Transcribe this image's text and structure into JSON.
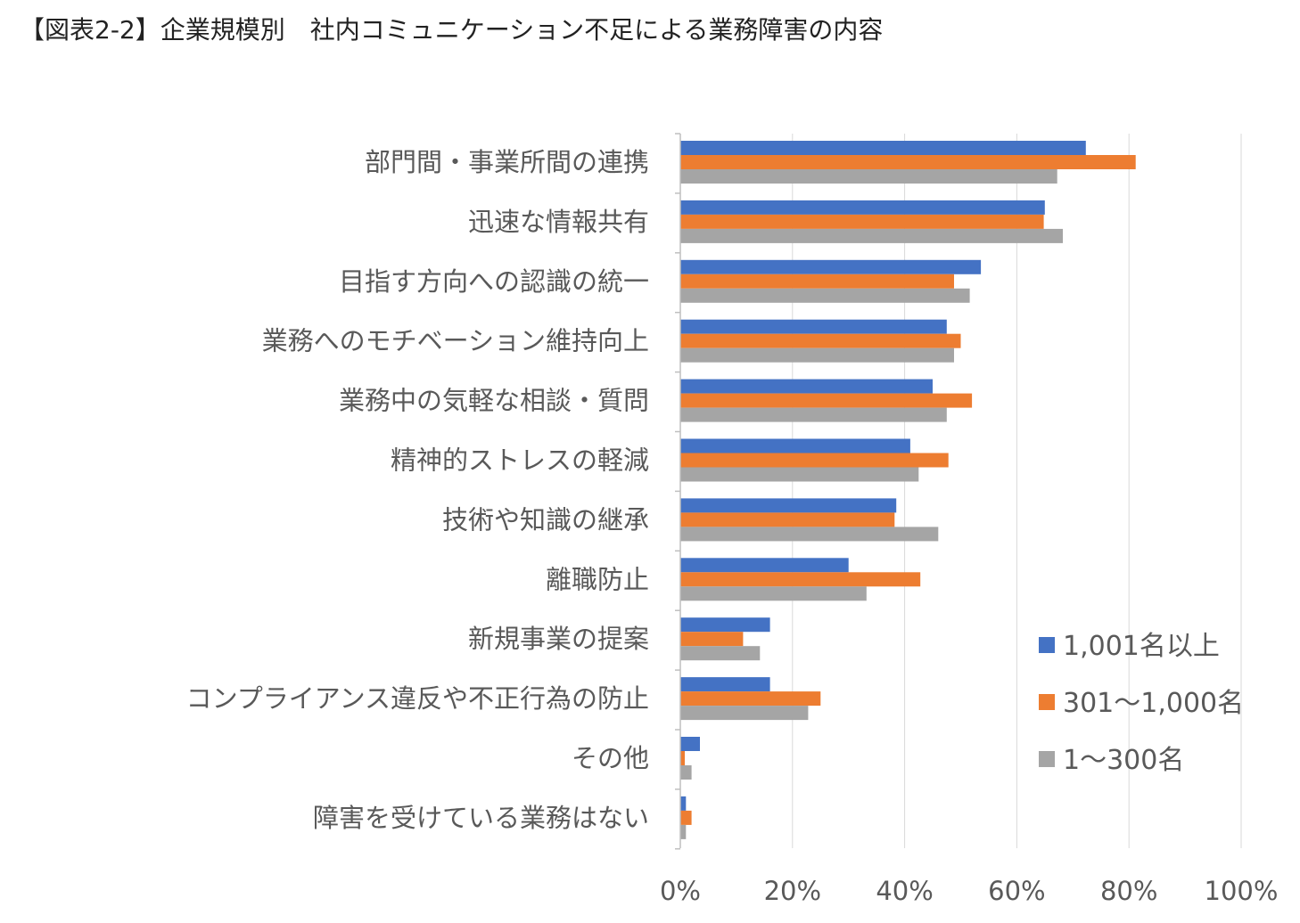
{
  "title": "【図表2-2】企業規模別　社内コミュニケーション不足による業務障害の内容",
  "chart_data": {
    "type": "bar",
    "orientation": "horizontal",
    "categories": [
      "部門間・事業所間の連携",
      "迅速な情報共有",
      "目指す方向への認識の統一",
      "業務へのモチベーション維持向上",
      "業務中の気軽な相談・質問",
      "精神的ストレスの軽減",
      "技術や知識の継承",
      "離職防止",
      "新規事業の提案",
      "コンプライアンス違反や不正行為の防止",
      "その他",
      "障害を受けている業務はない"
    ],
    "series": [
      {
        "name": "1,001名以上",
        "color": "#4472C4",
        "values": [
          72.3,
          65.0,
          53.6,
          47.5,
          45.0,
          41.0,
          38.5,
          30.0,
          16.0,
          16.0,
          3.5,
          1.0
        ]
      },
      {
        "name": "301～1,000名",
        "color": "#ED7D31",
        "values": [
          81.2,
          64.8,
          48.8,
          50.0,
          52.0,
          47.8,
          38.2,
          42.8,
          11.2,
          25.0,
          0.8,
          2.0
        ]
      },
      {
        "name": "1～300名",
        "color": "#A5A5A5",
        "values": [
          67.2,
          68.2,
          51.6,
          48.8,
          47.5,
          42.5,
          46.0,
          33.2,
          14.2,
          22.8,
          2.0,
          1.0
        ]
      }
    ],
    "xlim": [
      0,
      100
    ],
    "x_ticks": [
      "0%",
      "20%",
      "40%",
      "60%",
      "80%",
      "100%"
    ],
    "x_tick_values": [
      0,
      20,
      40,
      60,
      80,
      100
    ],
    "grid": true,
    "legend_position": "bottom-right"
  }
}
